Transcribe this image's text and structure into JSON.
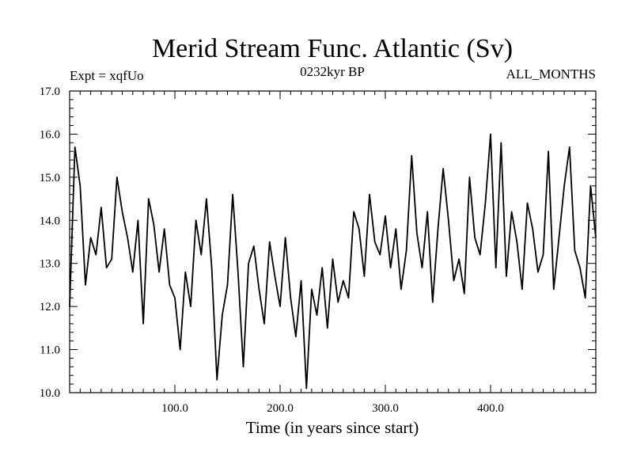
{
  "chart_data": {
    "type": "line",
    "title": "Merid Stream Func. Atlantic (Sv)",
    "subtitle_left": "Expt = xqfUo",
    "subtitle_center": "0232kyr BP",
    "subtitle_right": "ALL_MONTHS",
    "xlabel": "Time (in years since start)",
    "ylabel": "",
    "xlim": [
      0,
      500
    ],
    "ylim": [
      10.0,
      17.0
    ],
    "grid": false,
    "x_ticks": [
      100,
      200,
      300,
      400
    ],
    "x_tick_labels": [
      "100.0",
      "200.0",
      "300.0",
      "400.0"
    ],
    "y_ticks": [
      10,
      11,
      12,
      13,
      14,
      15,
      16,
      17
    ],
    "y_tick_labels": [
      "10.0",
      "11.0",
      "12.0",
      "13.0",
      "14.0",
      "15.0",
      "16.0",
      "17.0"
    ],
    "series": [
      {
        "name": "Merid Stream Func. Atlantic",
        "color": "#000000",
        "x": [
          0,
          5,
          10,
          15,
          20,
          25,
          30,
          35,
          40,
          45,
          50,
          55,
          60,
          65,
          70,
          75,
          80,
          85,
          90,
          95,
          100,
          105,
          110,
          115,
          120,
          125,
          130,
          135,
          140,
          145,
          150,
          155,
          160,
          165,
          170,
          175,
          180,
          185,
          190,
          195,
          200,
          205,
          210,
          215,
          220,
          225,
          230,
          235,
          240,
          245,
          250,
          255,
          260,
          265,
          270,
          275,
          280,
          285,
          290,
          295,
          300,
          305,
          310,
          315,
          320,
          325,
          330,
          335,
          340,
          345,
          350,
          355,
          360,
          365,
          370,
          375,
          380,
          385,
          390,
          395,
          400,
          405,
          410,
          415,
          420,
          425,
          430,
          435,
          440,
          445,
          450,
          455,
          460,
          465,
          470,
          475,
          480,
          485,
          490,
          495,
          500
        ],
        "values": [
          12.0,
          15.7,
          14.8,
          12.5,
          13.6,
          13.2,
          14.3,
          12.9,
          13.1,
          15.0,
          14.2,
          13.6,
          12.8,
          14.0,
          11.6,
          14.5,
          13.9,
          12.8,
          13.8,
          12.5,
          12.2,
          11.0,
          12.8,
          12.0,
          14.0,
          13.2,
          14.5,
          12.9,
          10.3,
          11.8,
          12.5,
          14.6,
          12.8,
          10.6,
          13.0,
          13.4,
          12.4,
          11.6,
          13.5,
          12.7,
          12.0,
          13.6,
          12.2,
          11.3,
          12.6,
          10.1,
          12.4,
          11.8,
          12.9,
          11.5,
          13.1,
          12.1,
          12.6,
          12.2,
          14.2,
          13.8,
          12.7,
          14.6,
          13.5,
          13.2,
          14.1,
          12.9,
          13.8,
          12.4,
          13.3,
          15.5,
          13.7,
          12.9,
          14.2,
          12.1,
          13.8,
          15.2,
          14.0,
          12.6,
          13.1,
          12.3,
          15.0,
          13.6,
          13.2,
          14.4,
          16.0,
          12.9,
          15.8,
          12.7,
          14.2,
          13.5,
          12.4,
          14.4,
          13.8,
          12.8,
          13.2,
          15.6,
          12.4,
          13.6,
          14.8,
          15.7,
          13.3,
          12.9,
          12.2,
          14.8,
          13.6
        ]
      }
    ]
  }
}
